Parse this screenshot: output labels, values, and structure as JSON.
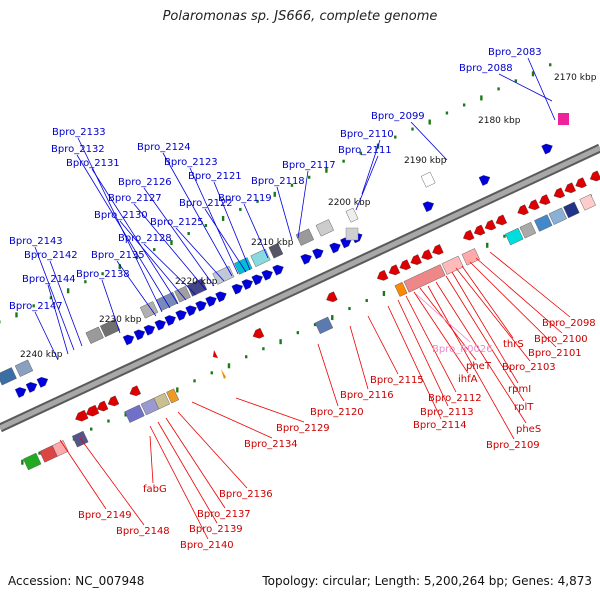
{
  "title": "Polaromonas sp. JS666, complete genome",
  "footer": {
    "accession": "Accession: NC_007948",
    "topology": "Topology: circular; Length: 5,200,264 bp; Genes: 4,873"
  },
  "colors": {
    "backbone": "#808080",
    "plus_strand_gene": "#0000dd",
    "minus_strand_gene": "#dd0000",
    "plus_label": "#0000cc",
    "minus_label": "#cc0000",
    "rna_label": "#ee88cc",
    "tick": "#1a7a1a"
  },
  "scale_labels": [
    "2170 kbp",
    "2180 kbp",
    "2190 kbp",
    "2200 kbp",
    "2210 kbp",
    "2220 kbp",
    "2230 kbp",
    "2240 kbp"
  ],
  "plus_labels": [
    "Bpro_2083",
    "Bpro_2088",
    "Bpro_2099",
    "Bpro_2110",
    "Bpro_2111",
    "Bpro_2117",
    "Bpro_2118",
    "Bpro_2119",
    "Bpro_2121",
    "Bpro_2122",
    "Bpro_2123",
    "Bpro_2124",
    "Bpro_2125",
    "Bpro_2126",
    "Bpro_2127",
    "Bpro_2128",
    "Bpro_2130",
    "Bpro_2131",
    "Bpro_2132",
    "Bpro_2133",
    "Bpro_2135",
    "Bpro_2138",
    "Bpro_2142",
    "Bpro_2143",
    "Bpro_2144",
    "Bpro_2147"
  ],
  "minus_labels": [
    "Bpro_2098",
    "Bpro_2100",
    "Bpro_2101",
    "thrS",
    "Bpro_2103",
    "rpmI",
    "rplT",
    "pheS",
    "Bpro_2109",
    "pheT",
    "ihfA",
    "Bpro_2112",
    "Bpro_2113",
    "Bpro_2114",
    "Bpro_2115",
    "Bpro_2116",
    "Bpro_2120",
    "Bpro_2129",
    "Bpro_2134",
    "Bpro_2136",
    "Bpro_2137",
    "Bpro_2139",
    "Bpro_2140",
    "fabG",
    "Bpro_2148",
    "Bpro_2149"
  ],
  "rna_labels": [
    "Bpro_R0026"
  ]
}
